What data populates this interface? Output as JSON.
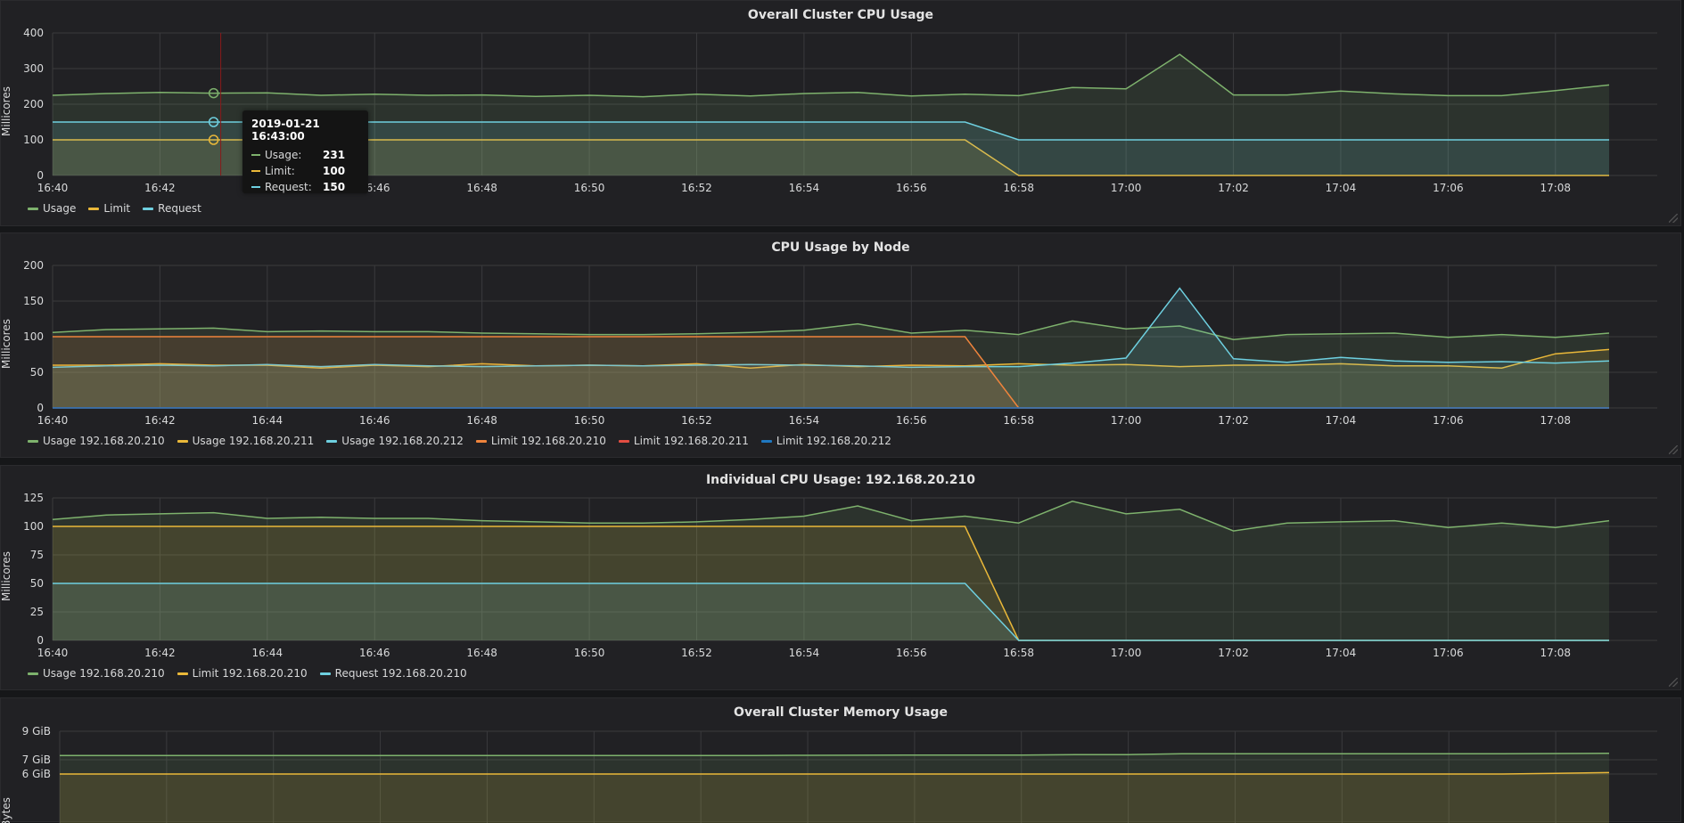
{
  "colors": {
    "usage": "#7eb26d",
    "limit": "#eab839",
    "request": "#6ed0e0",
    "limit_orange": "#ef843c",
    "limit_red": "#e24d42",
    "limit_blue": "#1f78c1",
    "grid": "#3a3a3d",
    "axis_text": "#d8d9da"
  },
  "time_axis": [
    "16:40",
    "16:42",
    "16:44",
    "16:46",
    "16:48",
    "16:50",
    "16:52",
    "16:54",
    "16:56",
    "16:58",
    "17:00",
    "17:02",
    "17:04",
    "17:06",
    "17:08"
  ],
  "panels": [
    {
      "title": "Overall Cluster CPU Usage",
      "ylabel": "Millicores",
      "yticks": [
        "400",
        "300",
        "200",
        "100",
        "0"
      ],
      "ymax": 400,
      "legend": [
        {
          "label": "Usage",
          "color": "#7eb26d"
        },
        {
          "label": "Limit",
          "color": "#eab839"
        },
        {
          "label": "Request",
          "color": "#6ed0e0"
        }
      ]
    },
    {
      "title": "CPU Usage by Node",
      "ylabel": "Millicores",
      "yticks": [
        "200",
        "150",
        "100",
        "50",
        "0"
      ],
      "ymax": 200,
      "legend": [
        {
          "label": "Usage 192.168.20.210",
          "color": "#7eb26d"
        },
        {
          "label": "Usage 192.168.20.211",
          "color": "#eab839"
        },
        {
          "label": "Usage 192.168.20.212",
          "color": "#6ed0e0"
        },
        {
          "label": "Limit 192.168.20.210",
          "color": "#ef843c"
        },
        {
          "label": "Limit 192.168.20.211",
          "color": "#e24d42"
        },
        {
          "label": "Limit 192.168.20.212",
          "color": "#1f78c1"
        }
      ]
    },
    {
      "title": "Individual CPU Usage: 192.168.20.210",
      "ylabel": "Millicores",
      "yticks": [
        "125",
        "100",
        "75",
        "50",
        "25",
        "0"
      ],
      "ymax": 125,
      "legend": [
        {
          "label": "Usage 192.168.20.210",
          "color": "#7eb26d"
        },
        {
          "label": "Limit 192.168.20.210",
          "color": "#eab839"
        },
        {
          "label": "Request 192.168.20.210",
          "color": "#6ed0e0"
        }
      ]
    },
    {
      "title": "Overall Cluster Memory Usage",
      "ylabel": "Bytes",
      "yticks": [
        "9 GiB",
        "7 GiB",
        "6 GiB"
      ]
    }
  ],
  "tooltip": {
    "time": "2019-01-21 16:43:00",
    "rows": [
      {
        "label": "Usage:",
        "value": "231",
        "color": "#7eb26d"
      },
      {
        "label": "Limit:",
        "value": "100",
        "color": "#eab839"
      },
      {
        "label": "Request:",
        "value": "150",
        "color": "#6ed0e0"
      }
    ]
  },
  "chart_data": [
    {
      "type": "area",
      "title": "Overall Cluster CPU Usage",
      "ylabel": "Millicores",
      "ylim": [
        0,
        400
      ],
      "x": [
        "16:40",
        "16:41",
        "16:42",
        "16:43",
        "16:44",
        "16:45",
        "16:46",
        "16:47",
        "16:48",
        "16:49",
        "16:50",
        "16:51",
        "16:52",
        "16:53",
        "16:54",
        "16:55",
        "16:56",
        "16:57",
        "16:58",
        "16:59",
        "17:00",
        "17:01",
        "17:02",
        "17:03",
        "17:04",
        "17:05",
        "17:06",
        "17:07",
        "17:08",
        "17:09"
      ],
      "series": [
        {
          "name": "Usage",
          "color": "#7eb26d",
          "values": [
            225,
            230,
            233,
            231,
            232,
            225,
            228,
            225,
            226,
            222,
            225,
            221,
            228,
            223,
            230,
            233,
            223,
            228,
            224,
            247,
            243,
            340,
            226,
            226,
            237,
            229,
            224,
            224,
            238,
            254
          ]
        },
        {
          "name": "Limit",
          "color": "#eab839",
          "values": [
            100,
            100,
            100,
            100,
            100,
            100,
            100,
            100,
            100,
            100,
            100,
            100,
            100,
            100,
            100,
            100,
            100,
            100,
            0,
            0,
            0,
            0,
            0,
            0,
            0,
            0,
            0,
            0,
            0,
            0
          ]
        },
        {
          "name": "Request",
          "color": "#6ed0e0",
          "values": [
            150,
            150,
            150,
            150,
            150,
            150,
            150,
            150,
            150,
            150,
            150,
            150,
            150,
            150,
            150,
            150,
            150,
            150,
            100,
            100,
            100,
            100,
            100,
            100,
            100,
            100,
            100,
            100,
            100,
            100
          ]
        }
      ]
    },
    {
      "type": "area",
      "title": "CPU Usage by Node",
      "ylabel": "Millicores",
      "ylim": [
        0,
        200
      ],
      "x": [
        "16:40",
        "16:41",
        "16:42",
        "16:43",
        "16:44",
        "16:45",
        "16:46",
        "16:47",
        "16:48",
        "16:49",
        "16:50",
        "16:51",
        "16:52",
        "16:53",
        "16:54",
        "16:55",
        "16:56",
        "16:57",
        "16:58",
        "16:59",
        "17:00",
        "17:01",
        "17:02",
        "17:03",
        "17:04",
        "17:05",
        "17:06",
        "17:07",
        "17:08",
        "17:09"
      ],
      "series": [
        {
          "name": "Usage 192.168.20.210",
          "color": "#7eb26d",
          "values": [
            106,
            110,
            111,
            112,
            107,
            108,
            107,
            107,
            105,
            104,
            103,
            103,
            104,
            106,
            109,
            118,
            105,
            109,
            103,
            122,
            111,
            115,
            96,
            103,
            104,
            105,
            99,
            103,
            99,
            105
          ]
        },
        {
          "name": "Usage 192.168.20.211",
          "color": "#eab839",
          "values": [
            60,
            60,
            62,
            60,
            60,
            56,
            60,
            58,
            62,
            59,
            60,
            59,
            62,
            56,
            61,
            58,
            60,
            59,
            62,
            60,
            61,
            58,
            60,
            60,
            62,
            59,
            59,
            56,
            76,
            82
          ]
        },
        {
          "name": "Usage 192.168.20.212",
          "color": "#6ed0e0",
          "values": [
            57,
            59,
            60,
            59,
            61,
            58,
            61,
            59,
            58,
            59,
            60,
            59,
            60,
            61,
            60,
            59,
            57,
            58,
            58,
            63,
            70,
            168,
            69,
            64,
            71,
            66,
            64,
            65,
            63,
            66
          ]
        },
        {
          "name": "Limit 192.168.20.210",
          "color": "#ef843c",
          "values": [
            100,
            100,
            100,
            100,
            100,
            100,
            100,
            100,
            100,
            100,
            100,
            100,
            100,
            100,
            100,
            100,
            100,
            100,
            0,
            0,
            0,
            0,
            0,
            0,
            0,
            0,
            0,
            0,
            0,
            0
          ]
        },
        {
          "name": "Limit 192.168.20.211",
          "color": "#e24d42",
          "values": [
            0,
            0,
            0,
            0,
            0,
            0,
            0,
            0,
            0,
            0,
            0,
            0,
            0,
            0,
            0,
            0,
            0,
            0,
            0,
            0,
            0,
            0,
            0,
            0,
            0,
            0,
            0,
            0,
            0,
            0
          ]
        },
        {
          "name": "Limit 192.168.20.212",
          "color": "#1f78c1",
          "values": [
            0,
            0,
            0,
            0,
            0,
            0,
            0,
            0,
            0,
            0,
            0,
            0,
            0,
            0,
            0,
            0,
            0,
            0,
            0,
            0,
            0,
            0,
            0,
            0,
            0,
            0,
            0,
            0,
            0,
            0
          ]
        }
      ]
    },
    {
      "type": "area",
      "title": "Individual CPU Usage: 192.168.20.210",
      "ylabel": "Millicores",
      "ylim": [
        0,
        125
      ],
      "x": [
        "16:40",
        "16:41",
        "16:42",
        "16:43",
        "16:44",
        "16:45",
        "16:46",
        "16:47",
        "16:48",
        "16:49",
        "16:50",
        "16:51",
        "16:52",
        "16:53",
        "16:54",
        "16:55",
        "16:56",
        "16:57",
        "16:58",
        "16:59",
        "17:00",
        "17:01",
        "17:02",
        "17:03",
        "17:04",
        "17:05",
        "17:06",
        "17:07",
        "17:08",
        "17:09"
      ],
      "series": [
        {
          "name": "Usage 192.168.20.210",
          "color": "#7eb26d",
          "values": [
            106,
            110,
            111,
            112,
            107,
            108,
            107,
            107,
            105,
            104,
            103,
            103,
            104,
            106,
            109,
            118,
            105,
            109,
            103,
            122,
            111,
            115,
            96,
            103,
            104,
            105,
            99,
            103,
            99,
            105
          ]
        },
        {
          "name": "Limit 192.168.20.210",
          "color": "#eab839",
          "values": [
            100,
            100,
            100,
            100,
            100,
            100,
            100,
            100,
            100,
            100,
            100,
            100,
            100,
            100,
            100,
            100,
            100,
            100,
            0,
            0,
            0,
            0,
            0,
            0,
            0,
            0,
            0,
            0,
            0,
            0
          ]
        },
        {
          "name": "Request 192.168.20.210",
          "color": "#6ed0e0",
          "values": [
            50,
            50,
            50,
            50,
            50,
            50,
            50,
            50,
            50,
            50,
            50,
            50,
            50,
            50,
            50,
            50,
            50,
            50,
            0,
            0,
            0,
            0,
            0,
            0,
            0,
            0,
            0,
            0,
            0,
            0
          ]
        }
      ]
    },
    {
      "type": "area",
      "title": "Overall Cluster Memory Usage",
      "ylabel": "Bytes",
      "ylim": [
        5,
        9
      ],
      "x": [
        "16:40",
        "16:41",
        "16:42",
        "16:43",
        "16:44",
        "16:45",
        "16:46",
        "16:47",
        "16:48",
        "16:49",
        "16:50",
        "16:51",
        "16:52",
        "16:53",
        "16:54",
        "16:55",
        "16:56",
        "16:57",
        "16:58",
        "16:59",
        "17:00",
        "17:01",
        "17:02",
        "17:03",
        "17:04",
        "17:05",
        "17:06",
        "17:07",
        "17:08",
        "17:09"
      ],
      "series": [
        {
          "name": "Usage",
          "color": "#7eb26d",
          "values": [
            7.3,
            7.3,
            7.3,
            7.3,
            7.3,
            7.3,
            7.3,
            7.3,
            7.3,
            7.3,
            7.3,
            7.3,
            7.3,
            7.3,
            7.31,
            7.32,
            7.33,
            7.33,
            7.33,
            7.36,
            7.36,
            7.42,
            7.42,
            7.42,
            7.42,
            7.42,
            7.42,
            7.42,
            7.44,
            7.45
          ]
        },
        {
          "name": "Limit",
          "color": "#eab839",
          "values": [
            6,
            6,
            6,
            6,
            6,
            6,
            6,
            6,
            6,
            6,
            6,
            6,
            6,
            6,
            6,
            6,
            6,
            6,
            6,
            6,
            6,
            6,
            6,
            6,
            6,
            6,
            6,
            6,
            6.05,
            6.1
          ]
        }
      ]
    }
  ]
}
